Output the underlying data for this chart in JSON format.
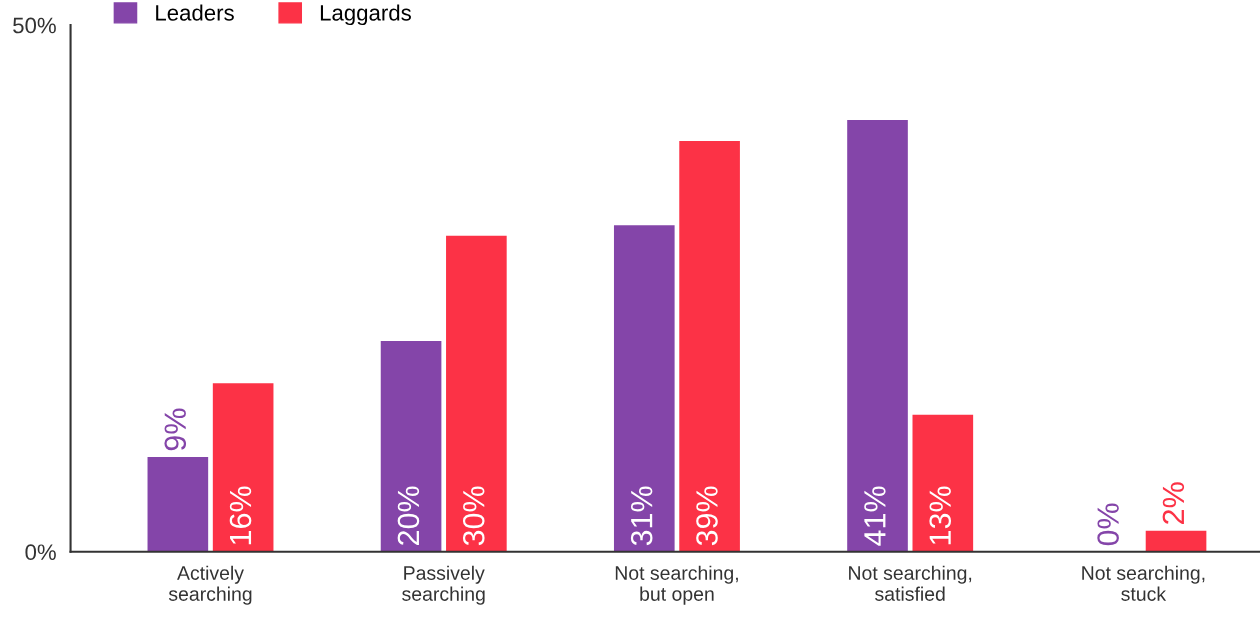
{
  "chart_data": {
    "type": "bar",
    "categories": [
      "Actively\nsearching",
      "Passively\nsearching",
      "Not searching,\nbut open",
      "Not searching,\nsatisfied",
      "Not searching,\nstuck"
    ],
    "series": [
      {
        "name": "Leaders",
        "color": "#8445a9",
        "values": [
          9,
          20,
          31,
          41,
          0
        ]
      },
      {
        "name": "Laggards",
        "color": "#fc3246",
        "values": [
          16,
          30,
          39,
          13,
          2
        ]
      }
    ],
    "ylim": [
      0,
      50
    ],
    "yticks": [
      {
        "value": 0,
        "label": "0%"
      },
      {
        "value": 50,
        "label": "50%"
      }
    ],
    "value_labels": [
      [
        "9%",
        "20%",
        "31%",
        "41%",
        "0%"
      ],
      [
        "16%",
        "30%",
        "39%",
        "13%",
        "2%"
      ]
    ],
    "grid": false,
    "legend": "top left"
  }
}
